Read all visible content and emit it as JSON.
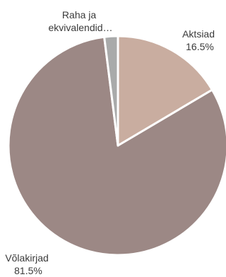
{
  "chart_data": {
    "type": "pie",
    "title": "",
    "slices": [
      {
        "name": "Aktsiad",
        "value": 16.5,
        "value_label": "16.5%",
        "label_lines": [
          "Aktsiad",
          "16.5%"
        ],
        "color": "#c9ada0"
      },
      {
        "name": "Võlakirjad",
        "value": 81.5,
        "value_label": "81.5%",
        "label_lines": [
          "Võlakirjad",
          "81.5%"
        ],
        "color": "#9c8885"
      },
      {
        "name": "Raha ja ekvivalendid…",
        "value": 2.0,
        "value_label": "",
        "label_lines": [
          "Raha ja",
          "ekvivalendid…"
        ],
        "color": "#a9aaaa"
      }
    ],
    "legend": "none",
    "start_angle": "top, clockwise",
    "separator_color": "#ffffff"
  }
}
